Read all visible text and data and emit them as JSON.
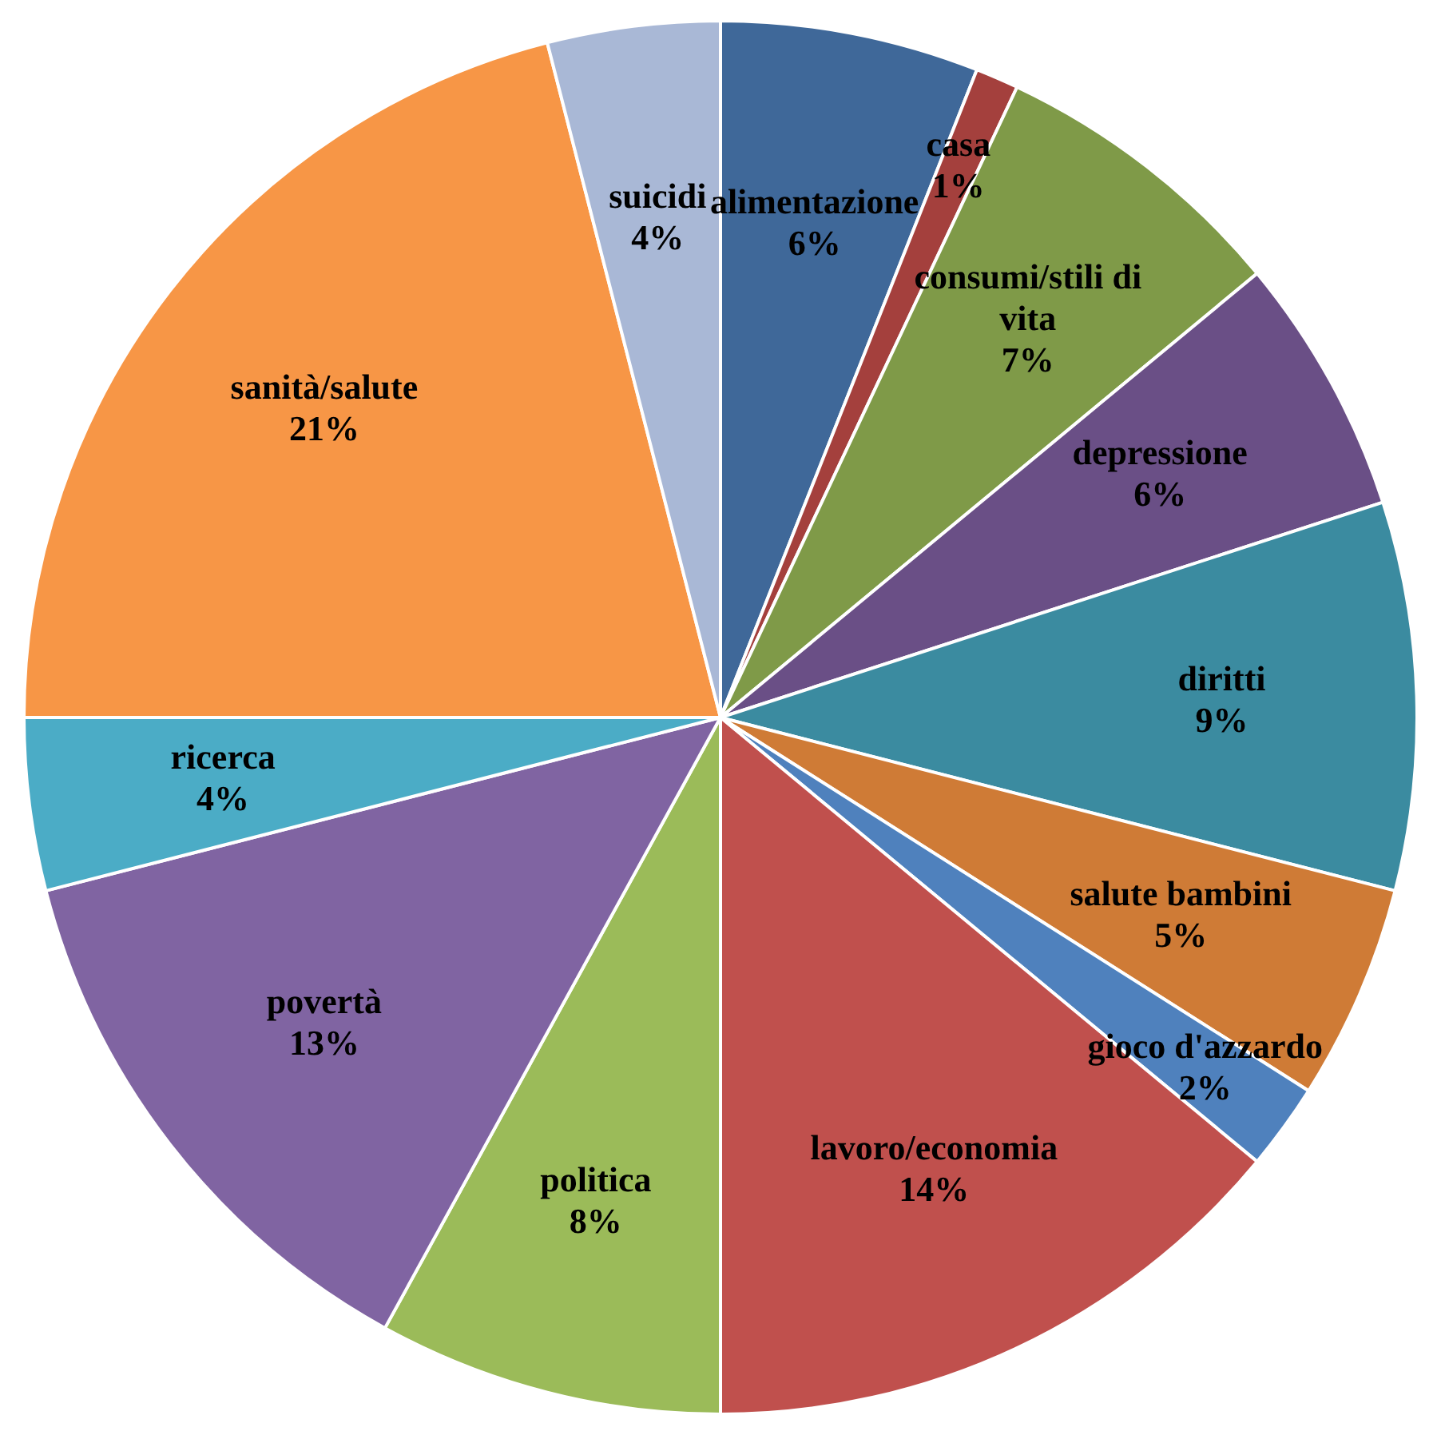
{
  "chart_data": {
    "type": "pie",
    "categories": [
      "alimentazione",
      "casa",
      "consumi/stili di vita",
      "depressione",
      "diritti",
      "salute bambini",
      "gioco d'azzardo",
      "lavoro/economia",
      "politica",
      "povertà",
      "ricerca",
      "sanità/salute",
      "suicidi"
    ],
    "values": [
      6,
      1,
      7,
      6,
      9,
      5,
      2,
      14,
      8,
      13,
      4,
      21,
      4
    ],
    "value_labels": [
      "6%",
      "1%",
      "7%",
      "6%",
      "9%",
      "5%",
      "2%",
      "14%",
      "8%",
      "13%",
      "4%",
      "21%",
      "4%"
    ],
    "colors": [
      "#3f6899",
      "#a4403d",
      "#7f9a48",
      "#6a4f86",
      "#3b8ba0",
      "#cf7b36",
      "#4f81bd",
      "#c0504d",
      "#9bbb59",
      "#8064a2",
      "#4bacc6",
      "#f79646",
      "#a9b8d6"
    ],
    "legend": false
  }
}
